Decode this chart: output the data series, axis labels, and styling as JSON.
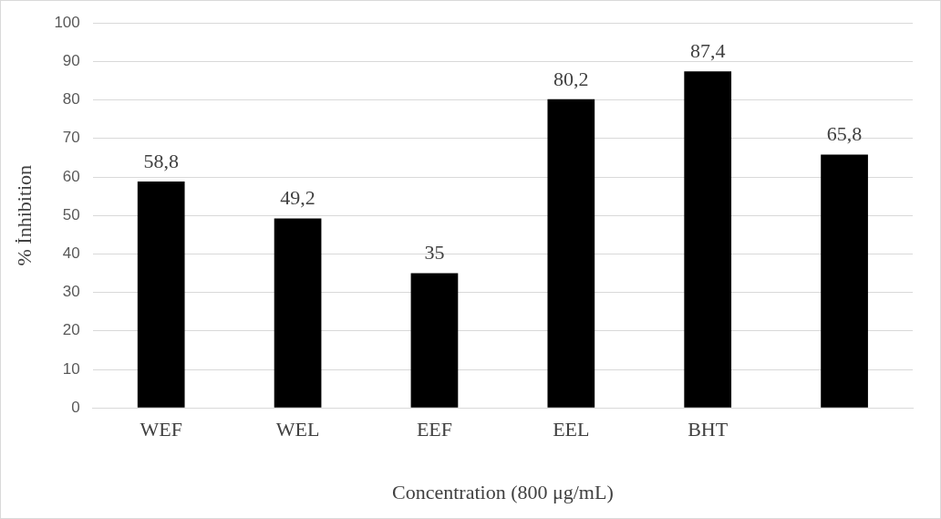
{
  "chart_data": {
    "type": "bar",
    "xlabel": "Concentration (800 μg/mL)",
    "ylabel": "% İnhibition",
    "categories": [
      "WEF",
      "WEL",
      "EEF",
      "EEL",
      "BHT",
      null
    ],
    "values": [
      58.8,
      49.2,
      35,
      80.2,
      87.4,
      65.8
    ],
    "value_labels": [
      "58,8",
      "49,2",
      "35",
      "80,2",
      "87,4",
      "65,8"
    ],
    "color": "#000000",
    "ylim": [
      0,
      100
    ],
    "yticks": [
      0,
      10,
      20,
      30,
      40,
      50,
      60,
      70,
      80,
      90,
      100
    ],
    "grid": "y",
    "legend": false
  }
}
